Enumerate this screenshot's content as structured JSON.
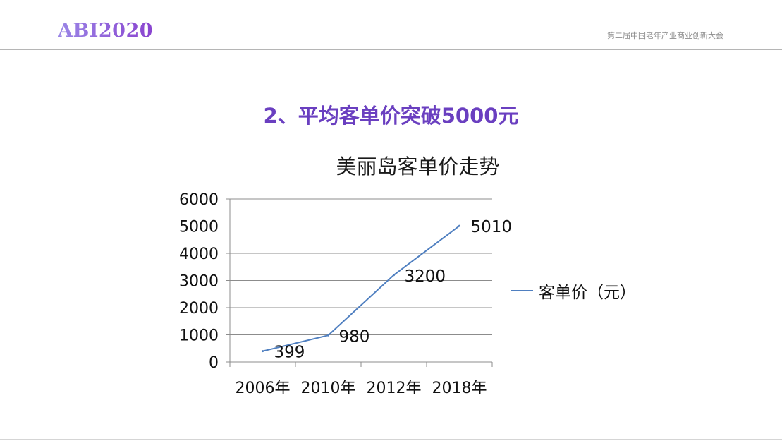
{
  "header": {
    "logo": "ABI2020",
    "conference": "第二届中国老年产业商业创新大会"
  },
  "slide": {
    "title": "2、平均客单价突破5000元"
  },
  "chart_data": {
    "type": "line",
    "title": "美丽岛客单价走势",
    "categories": [
      "2006年",
      "2010年",
      "2012年",
      "2018年"
    ],
    "series": [
      {
        "name": "客单价（元）",
        "values": [
          399,
          980,
          3200,
          5010
        ],
        "color": "#4f7fc0"
      }
    ],
    "data_labels": [
      "399",
      "980",
      "3200",
      "5010"
    ],
    "yticks": [
      0,
      1000,
      2000,
      3000,
      4000,
      5000,
      6000
    ],
    "ylim": [
      0,
      6000
    ],
    "grid": true,
    "legend_position": "right",
    "xlabel": "",
    "ylabel": ""
  }
}
